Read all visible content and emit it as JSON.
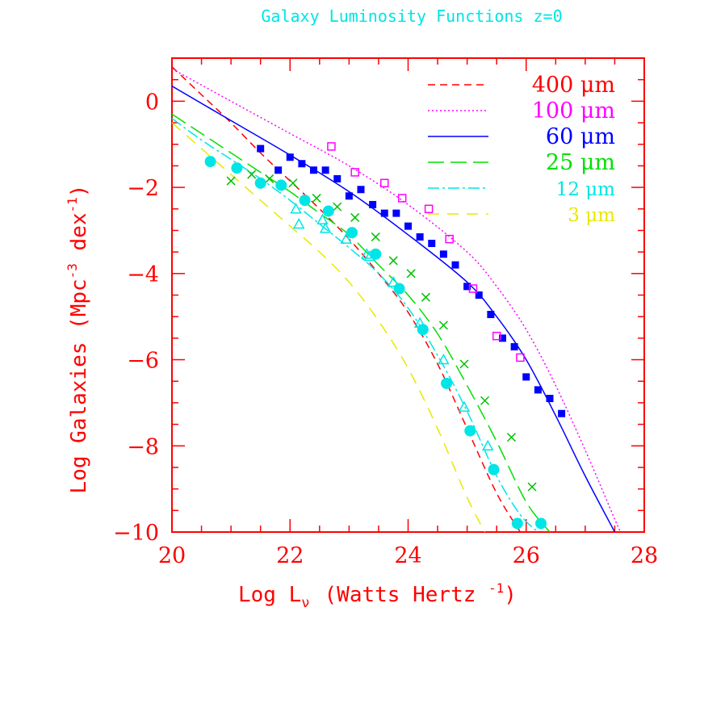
{
  "chart_data": {
    "type": "line",
    "title": "Galaxy Luminosity Functions z=0",
    "xlabel": "Log L",
    "xlabel_sub": "ν",
    "xlabel_units": "(Watts Hertz ",
    "xlabel_units_sup": "-1",
    "xlabel_units_end": ")",
    "ylabel": "Log  Galaxies  (Mpc",
    "ylabel_sup1": "-3",
    "ylabel_mid": " dex",
    "ylabel_sup2": "-1",
    "ylabel_end": ")",
    "xlim": [
      20,
      28
    ],
    "ylim": [
      -10,
      1
    ],
    "x_ticks": [
      20,
      22,
      24,
      26,
      28
    ],
    "y_ticks": [
      0,
      -2,
      -4,
      -6,
      -8,
      -10
    ],
    "x_tick_labels": [
      "20",
      "22",
      "24",
      "26",
      "28"
    ],
    "y_tick_labels": [
      "0",
      "−2",
      "−4",
      "−6",
      "−8",
      "−10"
    ],
    "legend_position": "top-right",
    "series": [
      {
        "name": "400 μm",
        "color": "#ff0000",
        "dash": "short-dash",
        "x": [
          20.0,
          20.5,
          21.0,
          21.5,
          22.0,
          22.5,
          23.0,
          23.5,
          24.0,
          24.5,
          25.0,
          25.5,
          25.9
        ],
        "y": [
          0.8,
          0.15,
          -0.5,
          -1.2,
          -1.85,
          -2.5,
          -3.2,
          -4.0,
          -4.9,
          -6.1,
          -7.6,
          -9.1,
          -10.0
        ]
      },
      {
        "name": "100 μm",
        "color": "#ff00ff",
        "dash": "dotted",
        "x": [
          20.0,
          21.0,
          22.0,
          23.0,
          24.0,
          25.0,
          25.5,
          26.0,
          26.5,
          27.0,
          27.5,
          27.6
        ],
        "y": [
          0.75,
          0.0,
          -0.75,
          -1.5,
          -2.4,
          -3.5,
          -4.3,
          -5.3,
          -6.6,
          -8.1,
          -9.7,
          -10.0
        ]
      },
      {
        "name": "60 μm",
        "color": "#0000ff",
        "dash": "solid",
        "x": [
          20.0,
          21.0,
          22.0,
          23.0,
          24.0,
          25.0,
          25.5,
          26.0,
          26.5,
          27.0,
          27.5
        ],
        "y": [
          0.35,
          -0.45,
          -1.25,
          -2.1,
          -3.1,
          -4.2,
          -5.0,
          -6.0,
          -7.3,
          -8.7,
          -10.0
        ]
      },
      {
        "name": "25 μm",
        "color": "#00e000",
        "dash": "long-dash",
        "x": [
          20.0,
          20.5,
          21.0,
          21.5,
          22.0,
          22.5,
          23.0,
          23.5,
          24.0,
          24.5,
          25.0,
          25.5,
          26.0,
          26.4
        ],
        "y": [
          -0.3,
          -0.75,
          -1.2,
          -1.65,
          -2.1,
          -2.6,
          -3.1,
          -3.8,
          -4.5,
          -5.4,
          -6.6,
          -7.9,
          -9.3,
          -10.0
        ]
      },
      {
        "name": "12 μm",
        "color": "#00e5e5",
        "dash": "dash-dot",
        "x": [
          20.0,
          20.5,
          21.0,
          21.5,
          22.0,
          22.5,
          23.0,
          23.5,
          24.0,
          24.5,
          25.0,
          25.5,
          25.9,
          26.2
        ],
        "y": [
          -0.4,
          -0.9,
          -1.35,
          -1.8,
          -2.3,
          -2.85,
          -3.4,
          -4.0,
          -4.8,
          -5.9,
          -7.2,
          -8.7,
          -9.6,
          -10.0
        ]
      },
      {
        "name": "3 μm",
        "color": "#e8e800",
        "dash": "long-dash-gap",
        "x": [
          20.0,
          20.5,
          21.0,
          21.5,
          22.0,
          22.5,
          23.0,
          23.5,
          24.0,
          24.5,
          25.0,
          25.3
        ],
        "y": [
          -0.5,
          -1.1,
          -1.7,
          -2.3,
          -2.9,
          -3.5,
          -4.2,
          -5.1,
          -6.2,
          -7.6,
          -9.2,
          -10.0
        ]
      }
    ],
    "points": [
      {
        "marker": "filled-square",
        "color": "#0000ff",
        "x": [
          21.5,
          21.8,
          22.0,
          22.2,
          22.4,
          22.6,
          22.8,
          23.0,
          23.2,
          23.4,
          23.6,
          23.8,
          24.0,
          24.2,
          24.4,
          24.6,
          24.8,
          25.0,
          25.2,
          25.4,
          25.6,
          25.8,
          26.0,
          26.2,
          26.4,
          26.6
        ],
        "y": [
          -1.1,
          -1.6,
          -1.3,
          -1.45,
          -1.6,
          -1.6,
          -1.8,
          -2.2,
          -2.05,
          -2.4,
          -2.6,
          -2.6,
          -2.9,
          -3.15,
          -3.3,
          -3.55,
          -3.8,
          -4.3,
          -4.5,
          -4.95,
          -5.5,
          -5.7,
          -6.4,
          -6.7,
          -6.9,
          -7.25
        ]
      },
      {
        "marker": "open-square",
        "color": "#ff00ff",
        "x": [
          22.7,
          23.1,
          23.6,
          23.9,
          24.35,
          24.7,
          25.1,
          25.5,
          25.9
        ],
        "y": [
          -1.05,
          -1.65,
          -1.9,
          -2.25,
          -2.5,
          -3.2,
          -4.35,
          -5.45,
          -5.95
        ]
      },
      {
        "marker": "cross",
        "color": "#00c000",
        "x": [
          21.0,
          21.35,
          21.65,
          22.05,
          22.45,
          22.8,
          23.1,
          23.45,
          23.75,
          24.05,
          24.3,
          24.6,
          24.95,
          25.3,
          25.75,
          26.1
        ],
        "y": [
          -1.85,
          -1.7,
          -1.8,
          -1.9,
          -2.25,
          -2.45,
          -2.7,
          -3.15,
          -3.7,
          -4.0,
          -4.55,
          -5.2,
          -6.1,
          -6.95,
          -7.8,
          -8.95
        ]
      },
      {
        "marker": "open-triangle",
        "color": "#00e5e5",
        "x": [
          22.1,
          22.15,
          22.55,
          22.6,
          22.95,
          23.3,
          23.35,
          23.75,
          24.2,
          24.6,
          24.95,
          25.35
        ],
        "y": [
          -2.5,
          -2.85,
          -2.75,
          -2.95,
          -3.2,
          -3.55,
          -3.6,
          -4.2,
          -5.15,
          -6.0,
          -7.1,
          -8.0
        ]
      },
      {
        "marker": "filled-circle",
        "color": "#00e5e5",
        "x": [
          20.65,
          21.1,
          21.5,
          21.85,
          22.25,
          22.65,
          23.05,
          23.45,
          23.85,
          24.25,
          24.65,
          25.05,
          25.45,
          25.85,
          26.25
        ],
        "y": [
          -1.4,
          -1.55,
          -1.9,
          -1.95,
          -2.3,
          -2.55,
          -3.05,
          -3.55,
          -4.35,
          -5.3,
          -6.55,
          -7.65,
          -8.55,
          -9.8,
          -9.8
        ]
      }
    ]
  }
}
